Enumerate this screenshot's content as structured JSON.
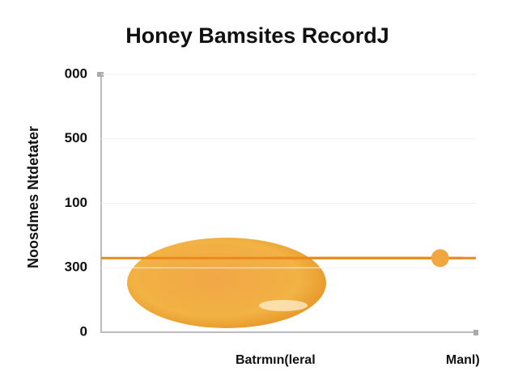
{
  "chart_data": {
    "type": "line",
    "title": "Honey Bamsites RecordJ",
    "y_label": "Noosdmes Ntdetater",
    "categories": [
      "Batrmın(leral",
      "Manl)"
    ],
    "series": [
      {
        "name": null,
        "color": "#e98a1a",
        "values": [
          1.15,
          1.15
        ]
      }
    ],
    "ylim": [
      0,
      4
    ],
    "yticks": [
      0,
      {
        "value": 1,
        "label": "300"
      },
      {
        "value": 2,
        "label": "100"
      },
      {
        "value": 3,
        "label": "500"
      },
      {
        "value": 4,
        "label": "000"
      }
    ],
    "grid": true
  }
}
